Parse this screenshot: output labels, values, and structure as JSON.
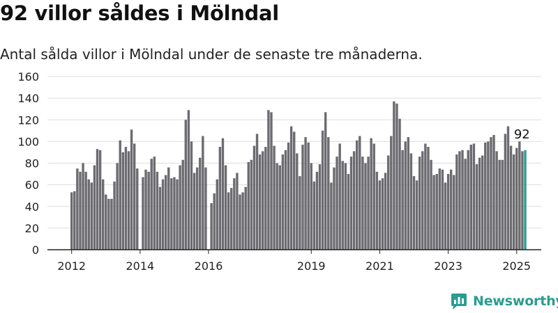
{
  "title": "92 villor såldes i Mölndal",
  "subtitle": "Antal sålda villor i Mölndal under de senaste tre månaderna.",
  "brand": "Newsworthy",
  "colors": {
    "bar": "#6c6b70",
    "highlight": "#2a9d8f",
    "grid": "#dddddd",
    "axis": "#222222",
    "text": "#222222"
  },
  "chart_data": {
    "type": "bar",
    "title": "92 villor såldes i Mölndal",
    "subtitle": "Antal sålda villor i Mölndal under de senaste tre månaderna.",
    "xlabel": "",
    "ylabel": "",
    "ylim": [
      0,
      160
    ],
    "yticks": [
      0,
      20,
      40,
      60,
      80,
      100,
      120,
      140,
      160
    ],
    "xticks": [
      {
        "label": "2012",
        "index": 0
      },
      {
        "label": "2014",
        "index": 24
      },
      {
        "label": "2016",
        "index": 48
      },
      {
        "label": "2019",
        "index": 84
      },
      {
        "label": "2021",
        "index": 108
      },
      {
        "label": "2023",
        "index": 132
      },
      {
        "label": "2025",
        "index": 156
      }
    ],
    "grid": true,
    "legend": "none",
    "highlight_label": "92",
    "values": [
      53,
      54,
      75,
      72,
      80,
      72,
      65,
      62,
      78,
      93,
      92,
      65,
      51,
      47,
      47,
      63,
      80,
      101,
      90,
      95,
      91,
      111,
      98,
      75,
      0,
      67,
      74,
      72,
      84,
      86,
      72,
      58,
      65,
      69,
      76,
      66,
      67,
      65,
      78,
      83,
      120,
      129,
      100,
      71,
      76,
      85,
      105,
      76,
      0,
      43,
      52,
      65,
      95,
      103,
      78,
      53,
      57,
      66,
      71,
      51,
      53,
      58,
      81,
      83,
      96,
      107,
      88,
      91,
      95,
      129,
      127,
      96,
      80,
      78,
      88,
      92,
      99,
      114,
      109,
      89,
      68,
      97,
      104,
      99,
      80,
      63,
      72,
      79,
      110,
      127,
      104,
      62,
      76,
      86,
      98,
      82,
      80,
      70,
      86,
      91,
      101,
      105,
      86,
      80,
      86,
      103,
      98,
      72,
      64,
      66,
      71,
      87,
      105,
      137,
      135,
      121,
      92,
      100,
      104,
      89,
      68,
      64,
      86,
      91,
      98,
      95,
      83,
      69,
      70,
      75,
      74,
      62,
      70,
      74,
      69,
      88,
      91,
      92,
      84,
      92,
      97,
      98,
      79,
      85,
      87,
      99,
      100,
      104,
      106,
      91,
      83,
      83,
      107,
      114,
      96,
      88,
      94,
      100,
      91,
      92
    ]
  }
}
